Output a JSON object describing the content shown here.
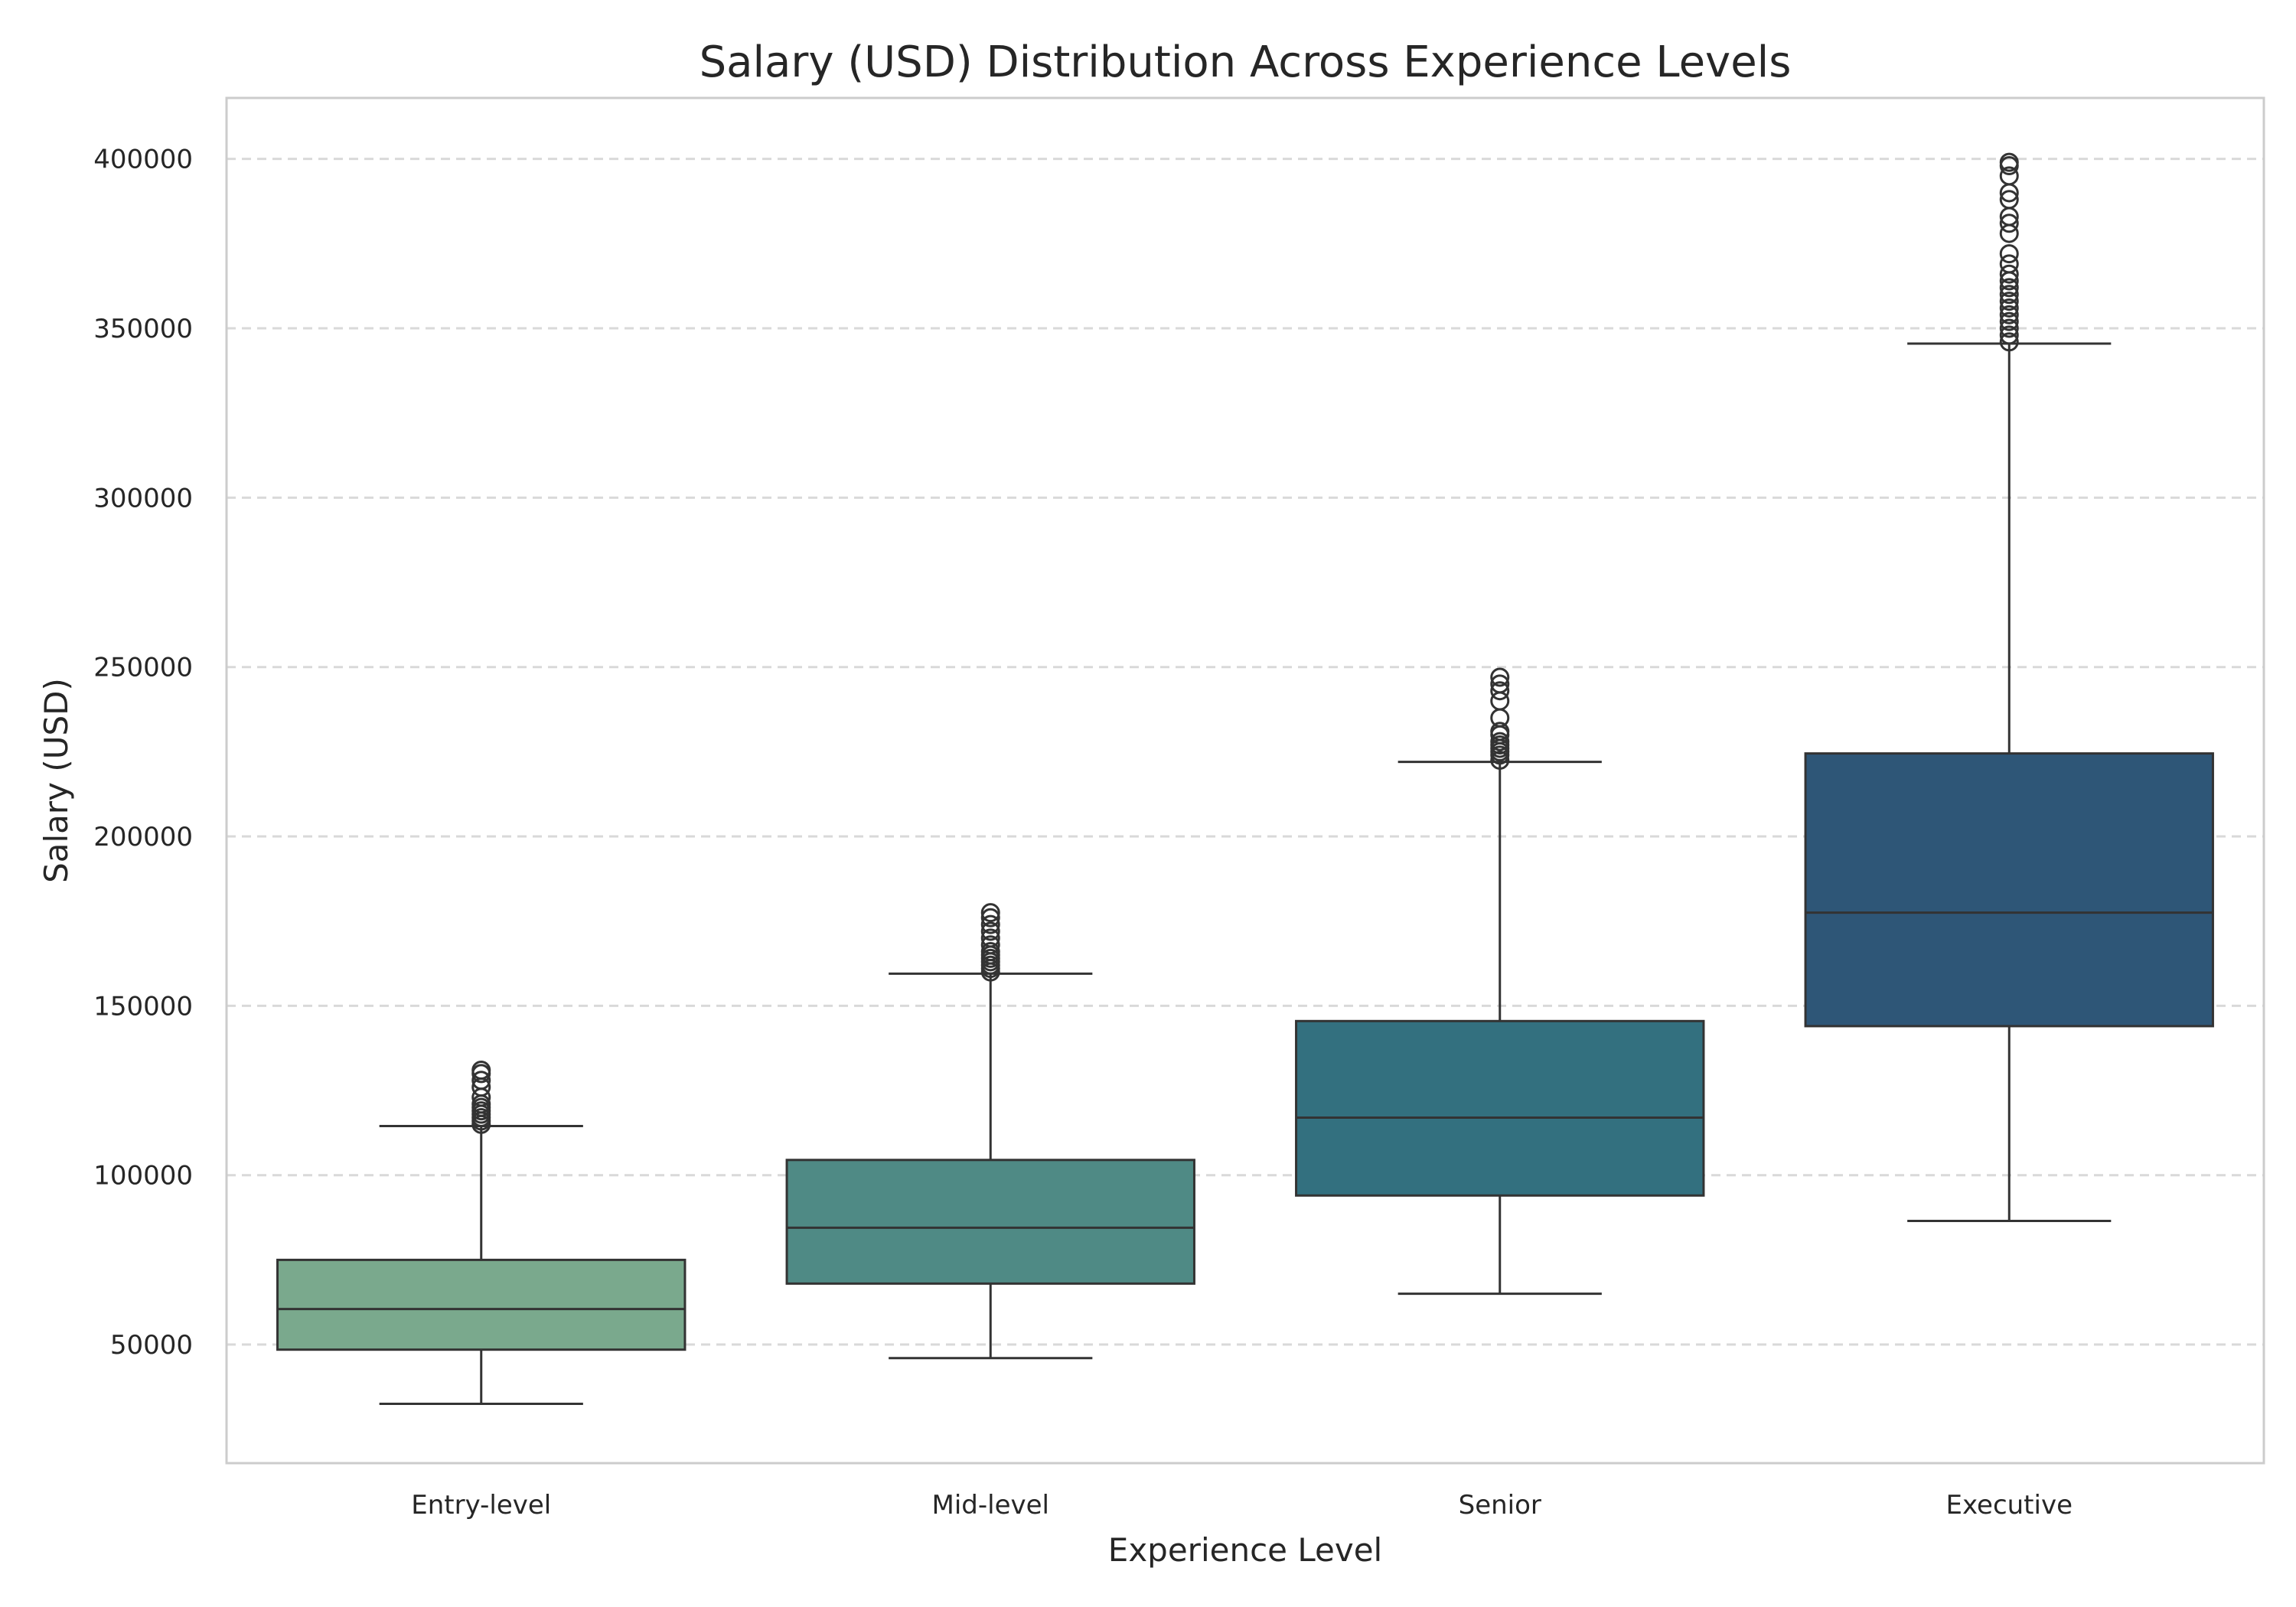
{
  "chart_data": {
    "type": "box",
    "title": "Salary (USD) Distribution Across Experience Levels",
    "xlabel": "Experience Level",
    "ylabel": "Salary (USD)",
    "ylim": [
      15000,
      418000
    ],
    "yticks": [
      50000,
      100000,
      150000,
      200000,
      250000,
      300000,
      350000,
      400000
    ],
    "grid": "horizontal-dashed",
    "categories": [
      "Entry-level",
      "Mid-level",
      "Senior",
      "Executive"
    ],
    "colors": [
      "#7aa98d",
      "#4f8a85",
      "#33707f",
      "#2e5677"
    ],
    "boxes": [
      {
        "category": "Entry-level",
        "whisker_low": 32500,
        "q1": 48500,
        "median": 60500,
        "q3": 75000,
        "whisker_high": 114500,
        "outliers": [
          115000,
          116000,
          117000,
          118000,
          119000,
          120000,
          121000,
          123000,
          126000,
          128000,
          130000,
          131000
        ]
      },
      {
        "category": "Mid-level",
        "whisker_low": 46000,
        "q1": 68000,
        "median": 84500,
        "q3": 104500,
        "whisker_high": 159500,
        "outliers": [
          160000,
          161000,
          162000,
          163000,
          164000,
          165000,
          166000,
          168000,
          170000,
          172000,
          174000,
          176000,
          177500
        ]
      },
      {
        "category": "Senior",
        "whisker_low": 65000,
        "q1": 94000,
        "median": 117000,
        "q3": 145500,
        "whisker_high": 222000,
        "outliers": [
          222500,
          224000,
          225000,
          226000,
          227000,
          228000,
          230000,
          231000,
          235000,
          240000,
          243000,
          245000,
          247000
        ]
      },
      {
        "category": "Executive",
        "whisker_low": 86500,
        "q1": 144000,
        "median": 177500,
        "q3": 224500,
        "whisker_high": 345500,
        "outliers": [
          346000,
          348000,
          350000,
          352000,
          354000,
          356000,
          358000,
          360000,
          362000,
          364000,
          366000,
          369000,
          372000,
          378000,
          381000,
          383000,
          388000,
          390000,
          395000,
          398000,
          399000
        ]
      }
    ]
  }
}
